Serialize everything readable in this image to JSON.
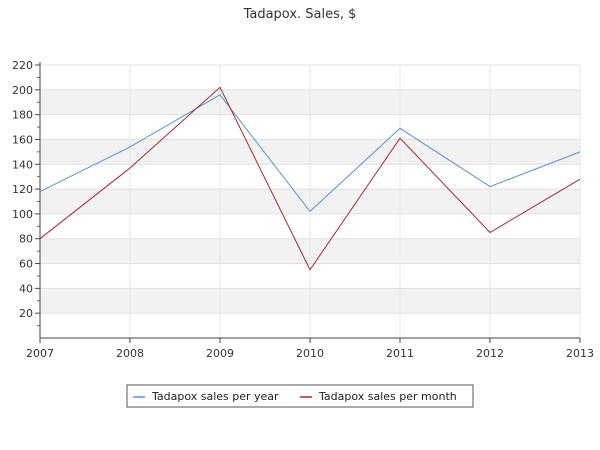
{
  "chart_data": {
    "type": "line",
    "title": "Tadapox. Sales, $",
    "xlabel": "",
    "ylabel": "",
    "x": [
      2007,
      2008,
      2009,
      2010,
      2011,
      2012,
      2013
    ],
    "xlim": [
      2007,
      2013
    ],
    "ylim": [
      0,
      220
    ],
    "yticks": [
      20,
      40,
      60,
      80,
      100,
      120,
      140,
      160,
      180,
      200,
      220
    ],
    "grid": true,
    "legend_position": "bottom",
    "series": [
      {
        "name": "Tadapox sales per year",
        "color": "#5b8fd9",
        "values": [
          118,
          154,
          196,
          102,
          169,
          122,
          150
        ]
      },
      {
        "name": "Tadapox sales per month",
        "color": "#a52a2a",
        "values": [
          80,
          137,
          202,
          55,
          161,
          85,
          128
        ]
      }
    ]
  }
}
